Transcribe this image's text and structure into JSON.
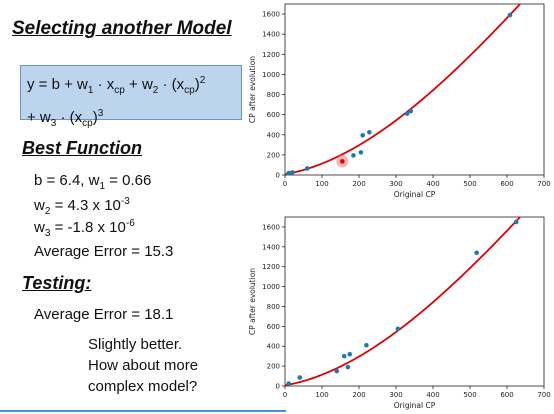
{
  "slide": {
    "title": "Selecting another Model",
    "formula": {
      "y": "y = b + w",
      "w1_sub": "1",
      "dot_xcp1": " · x",
      "cp1": "cp",
      "plus_w": " + w",
      "w2_sub": "2",
      "dot_paren": " · (x",
      "cp2": "cp",
      "close2": ")",
      "exp2": "2",
      "line2_a": "+ w",
      "w3_sub": "3",
      "dot_paren3": " · (x",
      "cp3": "cp",
      "close3": ")",
      "exp3": "3"
    },
    "best_function_heading": "Best Function",
    "b_w1": "b = 6.4, w",
    "w1_sub": "1",
    "w1_val": " = 0.66",
    "w2_pre": "w",
    "w2_sub": "2",
    "w2_val": " = 4.3 x 10",
    "w2_exp": "-3",
    "w3_pre": "w",
    "w3_sub": "3",
    "w3_val": " = -1.8 x 10",
    "w3_exp": "-6",
    "avg_error_train": "Average Error = 15.3",
    "testing_heading": "Testing:",
    "avg_error_test": "Average Error = 18.1",
    "note_line1": "Slightly better.",
    "note_line2": "How about more",
    "note_line3": "complex model?"
  },
  "colors": {
    "points": "#1f77b4",
    "curve": "#e00000",
    "highlight": "#f4a0a0",
    "box": "#bdd4ef"
  },
  "chart_data": [
    {
      "type": "scatter",
      "xlabel": "Original CP",
      "ylabel": "CP after evolution",
      "xlim": [
        0,
        700
      ],
      "ylim": [
        0,
        1700
      ],
      "xticks": [
        0,
        100,
        200,
        300,
        400,
        500,
        600,
        700
      ],
      "yticks": [
        0,
        200,
        400,
        600,
        800,
        1000,
        1200,
        1400,
        1600
      ],
      "points": [
        [
          10,
          20
        ],
        [
          20,
          25
        ],
        [
          60,
          65
        ],
        [
          155,
          135
        ],
        [
          185,
          195
        ],
        [
          205,
          225
        ],
        [
          210,
          395
        ],
        [
          228,
          425
        ],
        [
          330,
          610
        ],
        [
          340,
          635
        ],
        [
          608,
          1590
        ]
      ],
      "highlight_point": [
        155,
        135
      ],
      "fit": {
        "b": 6.4,
        "w1": 0.66,
        "w2": 0.0043,
        "w3": -1.8e-06
      }
    },
    {
      "type": "scatter",
      "xlabel": "Original CP",
      "ylabel": "CP after evolution",
      "xlim": [
        0,
        700
      ],
      "ylim": [
        0,
        1700
      ],
      "xticks": [
        0,
        100,
        200,
        300,
        400,
        500,
        600,
        700
      ],
      "yticks": [
        0,
        200,
        400,
        600,
        800,
        1000,
        1200,
        1400,
        1600
      ],
      "points": [
        [
          10,
          25
        ],
        [
          40,
          85
        ],
        [
          140,
          150
        ],
        [
          160,
          300
        ],
        [
          170,
          190
        ],
        [
          175,
          320
        ],
        [
          220,
          410
        ],
        [
          305,
          575
        ],
        [
          518,
          1340
        ],
        [
          625,
          1650
        ]
      ],
      "fit": {
        "b": 6.4,
        "w1": 0.66,
        "w2": 0.0043,
        "w3": -1.8e-06
      }
    }
  ]
}
